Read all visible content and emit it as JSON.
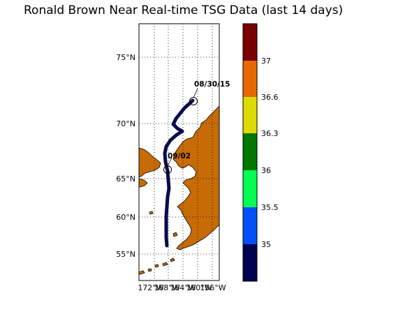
{
  "title": "Ronald Brown Near Real-time TSG Data (last 14 days)",
  "map": {
    "lat_labels": [
      "75°N",
      "70°N",
      "65°N",
      "60°N",
      "55°N"
    ],
    "lon_labels": [
      "172°W",
      "168°W",
      "164°W",
      "160°W",
      "156°W"
    ],
    "land_color": "#c76b06",
    "track_color": "#0a0a4c",
    "start_annotation": "08/30/15",
    "end_annotation": "09/02"
  },
  "colorbar": {
    "labels": [
      "35",
      "35.5",
      "36",
      "36.3",
      "36.6",
      "37"
    ],
    "colors": [
      "#000050",
      "#0050ff",
      "#00ff50",
      "#007800",
      "#dcdc00",
      "#e86800",
      "#780000"
    ]
  }
}
